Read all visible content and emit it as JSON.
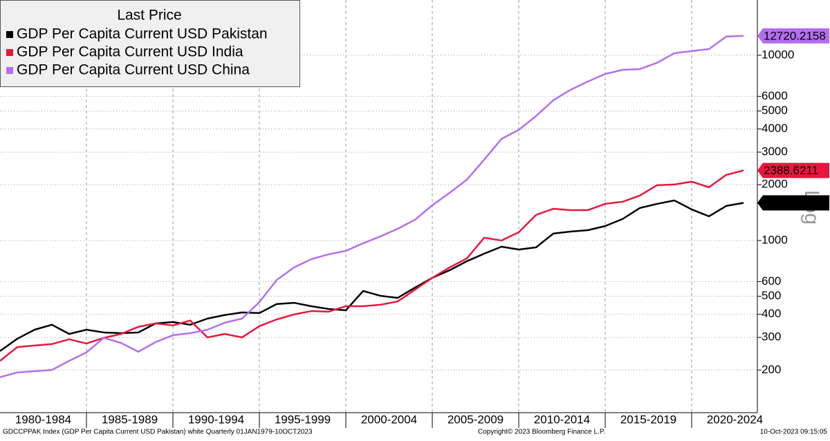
{
  "chart_data": {
    "type": "line",
    "legend_title": "Last Price",
    "log_scale": true,
    "y_scale_label": "Log",
    "grid": true,
    "legend_position": "top-left",
    "x": [
      1979,
      1980,
      1981,
      1982,
      1983,
      1984,
      1985,
      1986,
      1987,
      1988,
      1989,
      1990,
      1991,
      1992,
      1993,
      1994,
      1995,
      1996,
      1997,
      1998,
      1999,
      2000,
      2001,
      2002,
      2003,
      2004,
      2005,
      2006,
      2007,
      2008,
      2009,
      2010,
      2011,
      2012,
      2013,
      2014,
      2015,
      2016,
      2017,
      2018,
      2019,
      2020,
      2021,
      2022
    ],
    "xlim": [
      1979,
      2022.8
    ],
    "xticks": [
      {
        "value": 1981.5,
        "label": "1980-1984"
      },
      {
        "value": 1986.5,
        "label": "1985-1989"
      },
      {
        "value": 1991.5,
        "label": "1990-1994"
      },
      {
        "value": 1996.5,
        "label": "1995-1999"
      },
      {
        "value": 2001.5,
        "label": "2000-2004"
      },
      {
        "value": 2006.5,
        "label": "2005-2009"
      },
      {
        "value": 2011.5,
        "label": "2010-2014"
      },
      {
        "value": 2016.5,
        "label": "2015-2019"
      },
      {
        "value": 2021.5,
        "label": "2020-2024"
      }
    ],
    "ylim": [
      117.7,
      19870
    ],
    "yticks": [
      200,
      300,
      400,
      500,
      600,
      1000,
      2000,
      3000,
      4000,
      5000,
      6000,
      10000
    ],
    "series": [
      {
        "name": "GDP Per Capita Current USD Pakistan",
        "color": "#000000",
        "tag_text_color": "#ffffff",
        "values": [
          253,
          295,
          330,
          351,
          313,
          330,
          319,
          316,
          319,
          357,
          363,
          351,
          379,
          396,
          409,
          406,
          454,
          461,
          442,
          427,
          420,
          534,
          503,
          490,
          557,
          629,
          691,
          773,
          849,
          926,
          894,
          918,
          1090,
          1118,
          1137,
          1197,
          1306,
          1498,
          1577,
          1645,
          1472,
          1351,
          1537,
          1596.6627
        ]
      },
      {
        "name": "GDP Per Capita Current USD India",
        "color": "#e8163c",
        "tag_text_color": "#ffffff",
        "values": [
          224,
          266,
          271,
          276,
          293,
          278,
          298,
          313,
          342,
          357,
          348,
          370,
          300,
          313,
          300,
          345,
          375,
          399,
          416,
          413,
          442,
          442,
          450,
          469,
          543,
          629,
          715,
          800,
          1035,
          1000,
          1108,
          1374,
          1484,
          1459,
          1459,
          1577,
          1618,
          1748,
          1989,
          2006,
          2077,
          1938,
          2260,
          2388.6211
        ]
      },
      {
        "name": "GDP Per Capita Current USD China",
        "color": "#b36ef0",
        "tag_text_color": "#000000",
        "values": [
          183,
          194,
          197,
          200,
          224,
          249,
          298,
          280,
          251,
          283,
          308,
          316,
          330,
          360,
          379,
          465,
          612,
          715,
          793,
          842,
          879,
          967,
          1053,
          1157,
          1294,
          1550,
          1808,
          2130,
          2731,
          3534,
          3955,
          4697,
          5720,
          6513,
          7220,
          7925,
          8340,
          8420,
          9105,
          10260,
          10530,
          10800,
          12620,
          12720.2158
        ]
      }
    ]
  },
  "footer": {
    "left": "GDCCPPAK Index (GDP Per Capita Current USD Pakistan) white  Quarterly 01JAN1979-10OCT2023",
    "center": "Copyright© 2023 Bloomberg Finance L.P.",
    "right": "10-Oct-2023 09:15:05"
  }
}
